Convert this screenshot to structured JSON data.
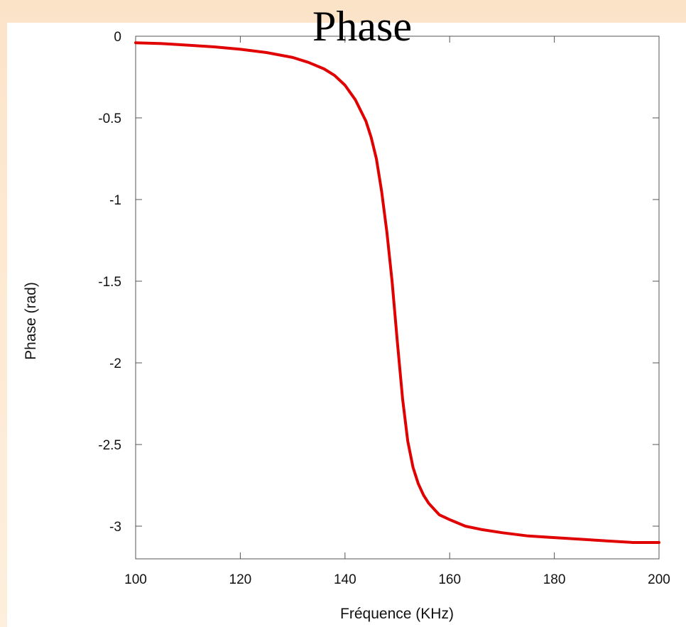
{
  "slide": {
    "title": "Phase"
  },
  "chart_data": {
    "type": "line",
    "title": "Phase",
    "xlabel": "Fréquence (KHz)",
    "ylabel": "Phase (rad)",
    "xlim": [
      100,
      200
    ],
    "ylim": [
      -3.2,
      0
    ],
    "x_ticks": [
      100,
      120,
      140,
      160,
      180,
      200
    ],
    "x_tick_labels": [
      "100",
      "120",
      "140",
      "160",
      "180",
      "200"
    ],
    "y_ticks": [
      0,
      -0.5,
      -1,
      -1.5,
      -2,
      -2.5,
      -3
    ],
    "y_tick_labels": [
      "0",
      "-0.5",
      "-1",
      "-1.5",
      "-2",
      "-2.5",
      "-3"
    ],
    "grid": false,
    "legend": "none",
    "series": [
      {
        "color": "#e00000",
        "points": [
          [
            100,
            -0.04
          ],
          [
            105,
            -0.045
          ],
          [
            110,
            -0.055
          ],
          [
            115,
            -0.065
          ],
          [
            120,
            -0.08
          ],
          [
            125,
            -0.1
          ],
          [
            130,
            -0.13
          ],
          [
            133,
            -0.16
          ],
          [
            136,
            -0.2
          ],
          [
            138,
            -0.24
          ],
          [
            140,
            -0.3
          ],
          [
            142,
            -0.39
          ],
          [
            144,
            -0.52
          ],
          [
            145,
            -0.62
          ],
          [
            146,
            -0.75
          ],
          [
            147,
            -0.95
          ],
          [
            148,
            -1.2
          ],
          [
            149,
            -1.5
          ],
          [
            150,
            -1.87
          ],
          [
            151,
            -2.22
          ],
          [
            152,
            -2.48
          ],
          [
            153,
            -2.64
          ],
          [
            154,
            -2.74
          ],
          [
            155,
            -2.81
          ],
          [
            156,
            -2.86
          ],
          [
            158,
            -2.93
          ],
          [
            160,
            -2.96
          ],
          [
            163,
            -3.0
          ],
          [
            166,
            -3.02
          ],
          [
            170,
            -3.04
          ],
          [
            175,
            -3.06
          ],
          [
            180,
            -3.07
          ],
          [
            185,
            -3.08
          ],
          [
            190,
            -3.09
          ],
          [
            195,
            -3.1
          ],
          [
            200,
            -3.1
          ]
        ]
      }
    ]
  }
}
